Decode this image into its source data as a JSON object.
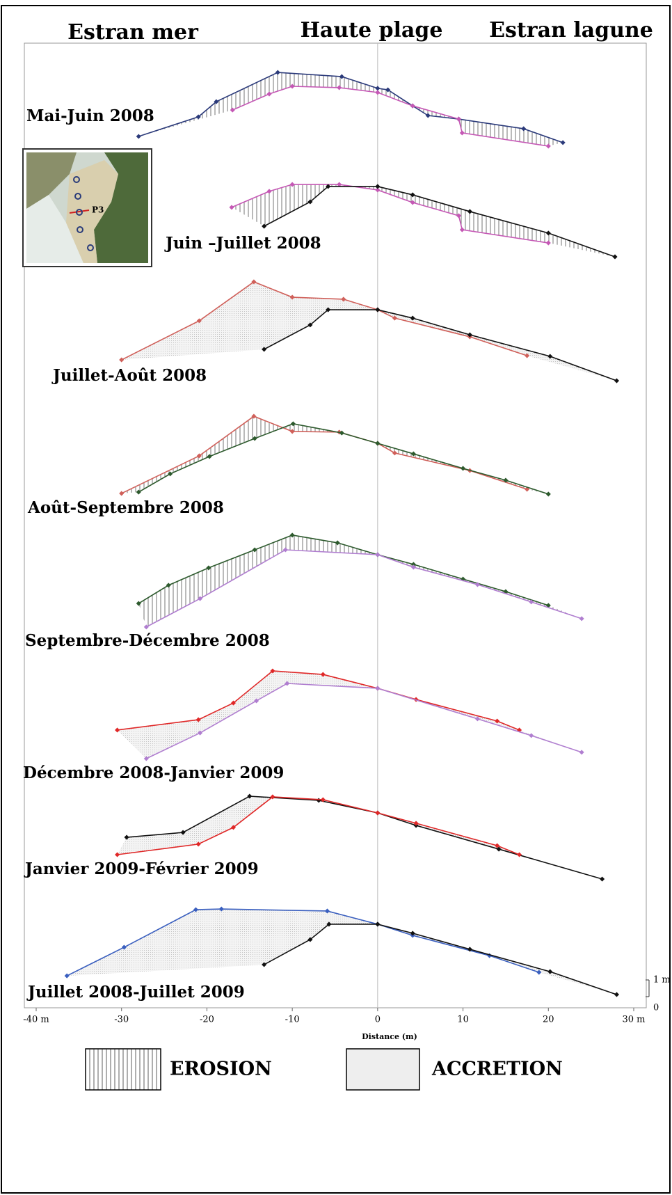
{
  "chart_data": {
    "type": "line",
    "headers": [
      "Estran mer",
      "Haute plage",
      "Estran lagune"
    ],
    "xlabel": "Distance (m)",
    "xlim": [
      -40,
      30
    ],
    "xticks": [
      {
        "value": -40,
        "label": "-40 m"
      },
      -30,
      -20,
      -10,
      0,
      10,
      20,
      {
        "value": 30,
        "label": "30 m"
      }
    ],
    "yticks": [
      0,
      {
        "value": 1,
        "label": "1 m"
      }
    ],
    "inset_label": "P3",
    "legend": [
      "EROSION",
      "ACCRETION"
    ],
    "panels": [
      {
        "label": "Mai-Juin 2008",
        "fill": "erosion",
        "series": [
          {
            "color": "#2b3a7a",
            "x": [
              -28.0,
              -21.0,
              -18.9,
              -11.7,
              -4.2,
              0,
              1.2,
              4.1,
              5.9,
              9.5,
              17.1,
              21.7
            ],
            "values": [
              1.0,
              2.17,
              3.08,
              4.83,
              4.58,
              3.88,
              3.79,
              2.83,
              2.25,
              2.04,
              1.46,
              0.63
            ]
          },
          {
            "color": "#c558b5",
            "x": [
              -17.0,
              -12.7,
              -10.0,
              -4.5,
              0,
              4.1,
              9.5,
              9.9,
              20.0
            ],
            "values": [
              2.58,
              3.54,
              4.0,
              3.92,
              3.63,
              2.83,
              2.04,
              1.21,
              0.42
            ]
          }
        ]
      },
      {
        "label": "Juin –Juillet 2008",
        "fill": "erosion",
        "series": [
          {
            "color": "#c558b5",
            "x": [
              -17.1,
              -12.7,
              -10.0,
              -4.5,
              0,
              4.1,
              9.5,
              9.9,
              20.0
            ],
            "values": [
              3.42,
              4.38,
              4.79,
              4.79,
              4.46,
              3.71,
              2.92,
              2.08,
              1.29
            ]
          },
          {
            "color": "#111111",
            "x": [
              -13.3,
              -7.9,
              -5.8,
              0,
              4.1,
              10.8,
              20.0,
              27.8
            ],
            "values": [
              2.29,
              3.75,
              4.67,
              4.67,
              4.17,
              3.17,
              1.88,
              0.46
            ]
          }
        ]
      },
      {
        "label": "Juillet-Août 2008",
        "fill": "accretion",
        "series": [
          {
            "color": "#d0605a",
            "x": [
              -30.0,
              -20.9,
              -14.5,
              -10.0,
              -4.0,
              0,
              2.0,
              10.8,
              17.5
            ],
            "values": [
              1.79,
              4.13,
              6.46,
              5.54,
              5.42,
              4.79,
              4.29,
              3.17,
              2.04
            ]
          },
          {
            "color": "#111111",
            "x": [
              -13.3,
              -7.9,
              -5.8,
              0,
              4.1,
              10.8,
              20.2,
              28.0
            ],
            "values": [
              2.42,
              3.88,
              4.79,
              4.79,
              4.29,
              3.29,
              2.0,
              0.54
            ]
          }
        ]
      },
      {
        "label": "Août-Septembre 2008",
        "fill": "erosion",
        "series": [
          {
            "color": "#d0605a",
            "x": [
              -30.0,
              -20.9,
              -14.5,
              -10.0,
              -4.5,
              0,
              2.0,
              10.8,
              17.5
            ],
            "values": [
              0.46,
              2.71,
              5.08,
              4.17,
              4.13,
              3.46,
              2.88,
              1.83,
              0.71
            ]
          },
          {
            "color": "#2d5a2d",
            "x": [
              -28.0,
              -24.3,
              -19.7,
              -14.4,
              -9.9,
              -4.2,
              0,
              4.2,
              10.0,
              15.0,
              20.0
            ],
            "values": [
              0.54,
              1.63,
              2.67,
              3.75,
              4.63,
              4.08,
              3.46,
              2.83,
              1.96,
              1.25,
              0.42
            ]
          }
        ]
      },
      {
        "label": "Septembre-Décembre 2008",
        "fill": "erosion",
        "series": [
          {
            "color": "#2d5a2d",
            "x": [
              -28.0,
              -24.5,
              -19.8,
              -14.4,
              -10.0,
              -4.7,
              0,
              4.2,
              10.0,
              15.0,
              20.0
            ],
            "values": [
              1.79,
              2.88,
              3.92,
              5.0,
              5.88,
              5.42,
              4.71,
              4.13,
              3.25,
              2.5,
              1.67
            ]
          },
          {
            "color": "#b07ed0",
            "x": [
              -27.1,
              -20.8,
              -10.8,
              0,
              4.2,
              11.7,
              18.0,
              23.9
            ],
            "values": [
              0.38,
              2.08,
              5.0,
              4.71,
              3.96,
              2.92,
              1.88,
              0.88
            ]
          }
        ]
      },
      {
        "label": "Décembre 2008-Janvier 2009",
        "fill": "accretion",
        "series": [
          {
            "color": "#e02828",
            "x": [
              -30.5,
              -21.0,
              -16.9,
              -12.3,
              -6.4,
              0,
              4.5,
              14.0,
              16.6
            ],
            "values": [
              1.71,
              2.33,
              3.33,
              5.25,
              5.04,
              4.21,
              3.54,
              2.25,
              1.71
            ]
          },
          {
            "color": "#b07ed0",
            "x": [
              -27.1,
              -20.8,
              -14.2,
              -10.6,
              0,
              11.7,
              18.0,
              23.9
            ],
            "values": [
              0,
              1.54,
              3.46,
              4.5,
              4.21,
              2.38,
              1.38,
              0.38
            ]
          }
        ]
      },
      {
        "label": "Janvier 2009-Février 2009",
        "fill": "accretion",
        "series": [
          {
            "color": "#111111",
            "x": [
              -29.4,
              -22.8,
              -15.0,
              -6.9,
              0,
              4.5,
              14.2,
              26.3
            ],
            "values": [
              2.79,
              3.08,
              5.25,
              5.0,
              4.25,
              3.5,
              2.08,
              0.29
            ]
          },
          {
            "color": "#e02828",
            "x": [
              -30.5,
              -21.0,
              -16.9,
              -12.3,
              -6.4,
              0,
              4.5,
              14.0,
              16.6
            ],
            "values": [
              1.75,
              2.38,
              3.38,
              5.21,
              5.04,
              4.25,
              3.63,
              2.29,
              1.75
            ]
          }
        ]
      },
      {
        "label": "Juillet 2008-Juillet 2009",
        "fill": "accretion",
        "series": [
          {
            "color": "#3a5fbf",
            "x": [
              -36.4,
              -29.7,
              -21.3,
              -18.3,
              -5.9,
              0,
              4.1,
              13.1,
              18.9
            ],
            "values": [
              1.58,
              3.29,
              5.54,
              5.58,
              5.46,
              4.67,
              4.0,
              2.79,
              1.79
            ]
          },
          {
            "color": "#111111",
            "x": [
              -13.3,
              -7.9,
              -5.7,
              0,
              4.1,
              10.8,
              20.2,
              28.0
            ],
            "values": [
              2.25,
              3.75,
              4.67,
              4.67,
              4.13,
              3.17,
              1.83,
              0.46
            ]
          }
        ]
      }
    ]
  }
}
